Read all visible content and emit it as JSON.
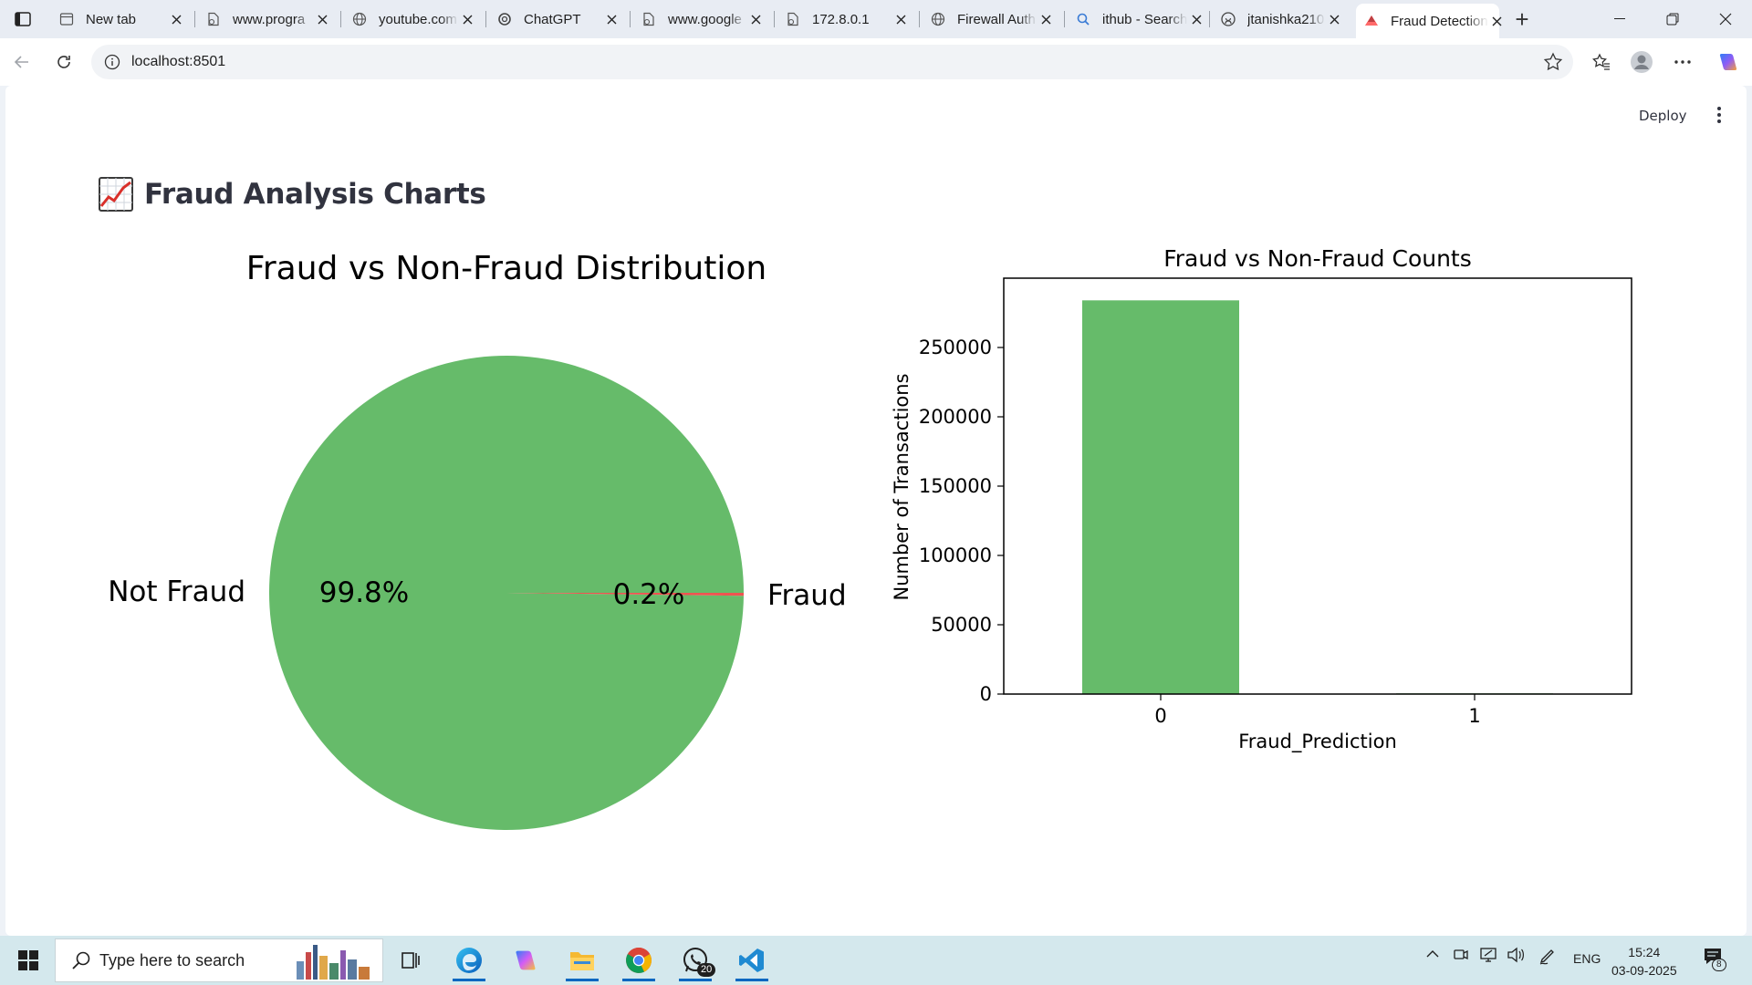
{
  "browser": {
    "tabs": [
      {
        "label": "New tab",
        "icon": "newtab-icon",
        "active": false
      },
      {
        "label": "www.progra",
        "icon": "page-icon",
        "active": false
      },
      {
        "label": "youtube.com",
        "icon": "globe-icon",
        "active": false
      },
      {
        "label": "ChatGPT",
        "icon": "chatgpt-icon",
        "active": false
      },
      {
        "label": "www.google",
        "icon": "page-icon",
        "active": false
      },
      {
        "label": "172.8.0.1",
        "icon": "page-icon",
        "active": false
      },
      {
        "label": "Firewall Auth",
        "icon": "globe-icon",
        "active": false
      },
      {
        "label": "ithub - Search",
        "icon": "search-icon",
        "active": false
      },
      {
        "label": "jtanishka210",
        "icon": "github-icon",
        "active": false
      },
      {
        "label": "Fraud Detection",
        "icon": "streamlit-icon",
        "active": true
      }
    ],
    "url": "localhost:8501"
  },
  "app": {
    "deploy_label": "Deploy",
    "heading": "Fraud Analysis Charts",
    "heading_icon": "chart-increasing-icon"
  },
  "colors": {
    "not_fraud": "#66bb6a",
    "fraud": "#ef5350",
    "accent": "#0067c0"
  },
  "chart_data": [
    {
      "type": "pie",
      "title": "Fraud vs Non-Fraud Distribution",
      "labels": [
        "Not Fraud",
        "Fraud"
      ],
      "values": [
        99.8,
        0.2
      ],
      "value_labels": [
        "99.8%",
        "0.2%"
      ],
      "colors": [
        "#66bb6a",
        "#ef5350"
      ]
    },
    {
      "type": "bar",
      "title": "Fraud vs Non-Fraud Counts",
      "categories": [
        "0",
        "1"
      ],
      "values": [
        284000,
        500
      ],
      "xlabel": "Fraud_Prediction",
      "ylabel": "Number of Transactions",
      "ylim": [
        0,
        300000
      ],
      "yticks": [
        0,
        50000,
        100000,
        150000,
        200000,
        250000
      ],
      "ytick_labels": [
        "0",
        "50000",
        "100000",
        "150000",
        "200000",
        "250000"
      ],
      "color": "#66bb6a",
      "grid": false
    }
  ],
  "taskbar": {
    "search_placeholder": "Type here to search",
    "whatsapp_badge": "20",
    "language": "ENG",
    "time": "15:24",
    "date": "03-09-2025",
    "notification_count": "8"
  }
}
